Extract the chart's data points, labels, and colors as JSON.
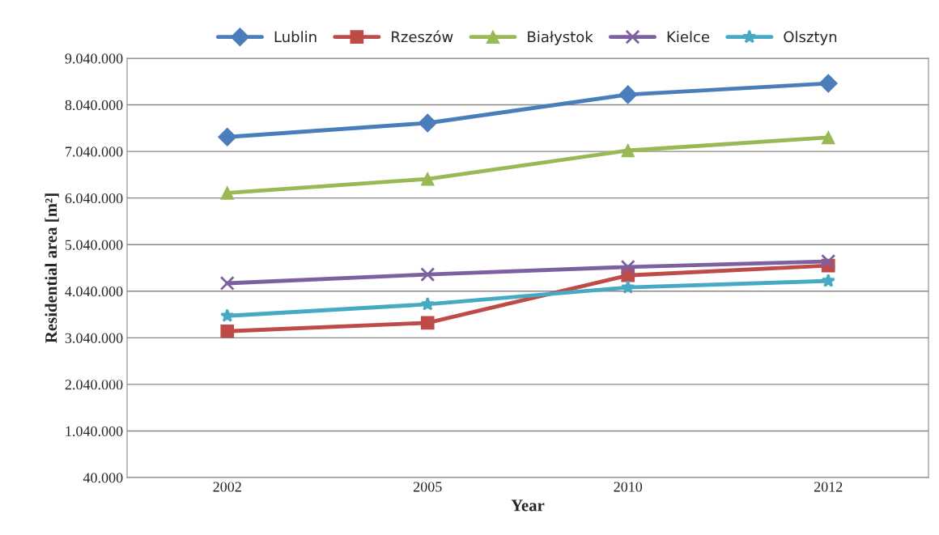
{
  "chart_data": {
    "type": "line",
    "xlabel": "Year",
    "ylabel": "Residential area [m²]",
    "categories": [
      "2002",
      "2005",
      "2010",
      "2012"
    ],
    "series": [
      {
        "name": "Lublin",
        "color": "#4a7ebb",
        "marker": "diamond",
        "values": [
          7350000,
          7650000,
          8260000,
          8500000
        ]
      },
      {
        "name": "Rzeszów",
        "color": "#be4b48",
        "marker": "square",
        "values": [
          3180000,
          3360000,
          4380000,
          4590000
        ]
      },
      {
        "name": "Białystok",
        "color": "#98b954",
        "marker": "triangle",
        "values": [
          6150000,
          6450000,
          7060000,
          7340000
        ]
      },
      {
        "name": "Kielce",
        "color": "#7d60a0",
        "marker": "cross",
        "values": [
          4210000,
          4400000,
          4560000,
          4680000
        ]
      },
      {
        "name": "Olsztyn",
        "color": "#46aac5",
        "marker": "star",
        "values": [
          3510000,
          3760000,
          4120000,
          4260000
        ]
      }
    ],
    "ylim": [
      40000,
      9040000
    ],
    "yticks": [
      {
        "value": 40000,
        "label": "40.000"
      },
      {
        "value": 1040000,
        "label": "1.040.000"
      },
      {
        "value": 2040000,
        "label": "2.040.000"
      },
      {
        "value": 3040000,
        "label": "3.040.000"
      },
      {
        "value": 4040000,
        "label": "4.040.000"
      },
      {
        "value": 5040000,
        "label": "5.040.000"
      },
      {
        "value": 6040000,
        "label": "6.040.000"
      },
      {
        "value": 7040000,
        "label": "7.040.000"
      },
      {
        "value": 8040000,
        "label": "8.040.000"
      },
      {
        "value": 9040000,
        "label": "9.040.000"
      }
    ],
    "grid": "y",
    "legend": "top",
    "line_style": "solid"
  }
}
